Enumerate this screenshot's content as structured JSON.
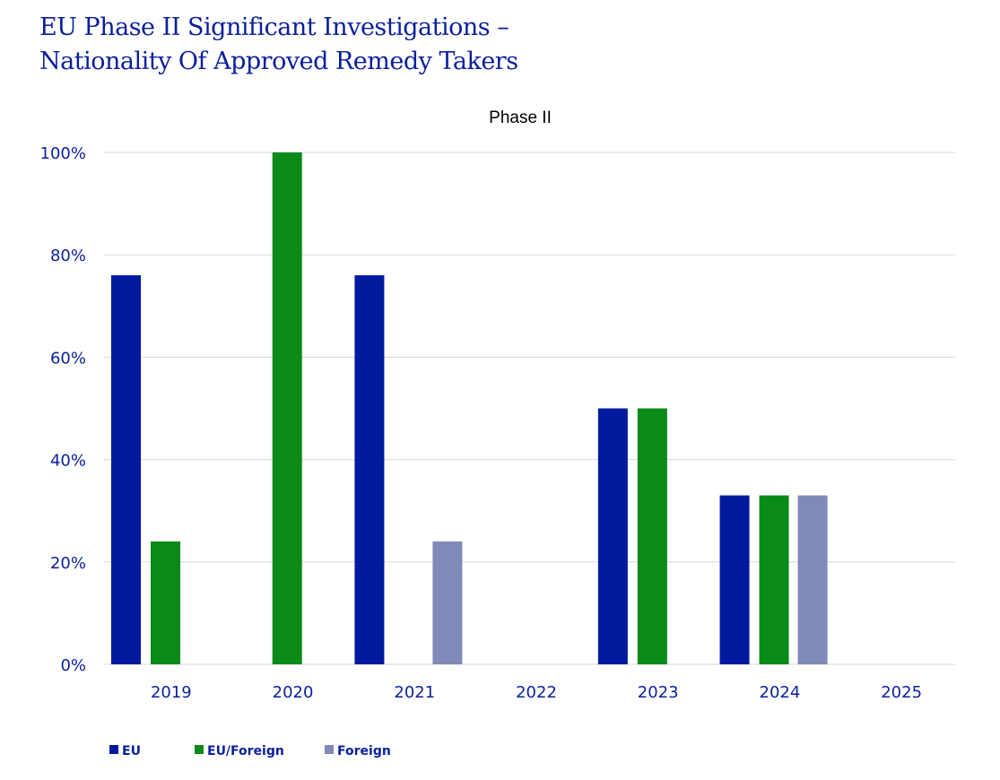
{
  "chart_data": {
    "type": "bar",
    "title": "EU Phase II Significant Investigations – Nationality Of Approved Remedy Takers",
    "title_lines": [
      "EU Phase II Significant Investigations  –",
      "Nationality Of Approved Remedy Takers"
    ],
    "subtitle": "Phase II",
    "xlabel": "",
    "ylabel": "",
    "ylim": [
      0,
      100
    ],
    "yticks": [
      0,
      20,
      40,
      60,
      80,
      100
    ],
    "ytick_labels": [
      "0%",
      "20%",
      "40%",
      "60%",
      "80%",
      "100%"
    ],
    "categories": [
      "2019",
      "2020",
      "2021",
      "2022",
      "2023",
      "2024",
      "2025"
    ],
    "series": [
      {
        "name": "EU",
        "color": "#001a9e",
        "values": [
          76,
          0,
          76,
          0,
          50,
          33,
          0
        ]
      },
      {
        "name": "EU/Foreign",
        "color": "#0a8a19",
        "values": [
          24,
          100,
          0,
          0,
          50,
          33,
          0
        ]
      },
      {
        "name": "Foreign",
        "color": "#8189b8",
        "values": [
          0,
          0,
          24,
          0,
          0,
          33,
          0
        ]
      }
    ],
    "grid": true,
    "legend_position": "bottom-left"
  }
}
